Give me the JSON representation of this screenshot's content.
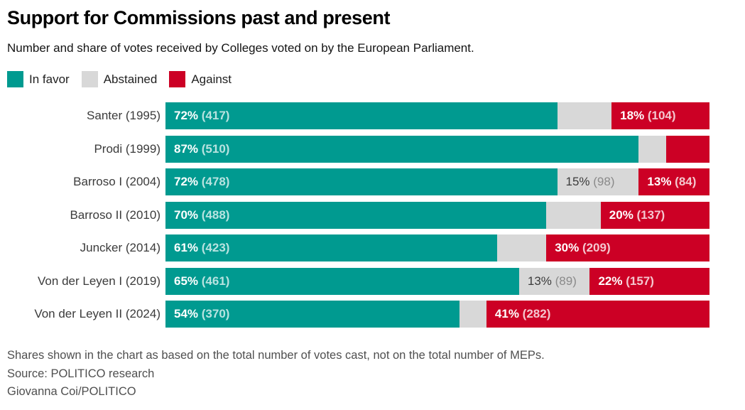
{
  "header": {
    "title": "Support for Commissions past and present",
    "subtitle": "Number and share of votes received by Colleges voted on by the European Parliament."
  },
  "legend": {
    "items": [
      {
        "kind": "favor",
        "label": "In favor",
        "color": "#009A90"
      },
      {
        "kind": "abstain",
        "label": "Abstained",
        "color": "#D8D8D8"
      },
      {
        "kind": "against",
        "label": "Against",
        "color": "#CC0025"
      }
    ]
  },
  "chart_data": {
    "type": "bar",
    "orientation": "horizontal",
    "stacked": true,
    "value_unit": "percent of votes cast",
    "xlim": [
      0,
      100
    ],
    "grid": false,
    "legend_position": "top-left",
    "label_format": "{pct}% ({count})",
    "categories": [
      "Santer (1995)",
      "Prodi (1999)",
      "Barroso I (2004)",
      "Barroso II (2010)",
      "Juncker (2014)",
      "Von der Leyen I (2019)",
      "Von der Leyen II (2024)"
    ],
    "series": [
      {
        "name": "In favor",
        "kind": "favor",
        "color": "#009A90",
        "values": [
          72,
          87,
          72,
          70,
          61,
          65,
          54
        ],
        "counts": [
          417,
          510,
          478,
          488,
          423,
          461,
          370
        ],
        "label_shown": [
          true,
          true,
          true,
          true,
          true,
          true,
          true
        ]
      },
      {
        "name": "Abstained",
        "kind": "abstain",
        "color": "#D8D8D8",
        "values": [
          10,
          5,
          15,
          10,
          9,
          13,
          5
        ],
        "counts": [
          null,
          null,
          98,
          null,
          null,
          89,
          null
        ],
        "label_shown": [
          false,
          false,
          true,
          false,
          false,
          true,
          false
        ]
      },
      {
        "name": "Against",
        "kind": "against",
        "color": "#CC0025",
        "values": [
          18,
          8,
          13,
          20,
          30,
          22,
          41
        ],
        "counts": [
          104,
          null,
          84,
          137,
          209,
          157,
          282
        ],
        "label_shown": [
          true,
          false,
          true,
          true,
          true,
          true,
          true
        ]
      }
    ]
  },
  "footer": {
    "note": "Shares shown in the chart as based on the total number of votes cast, not on the total number of MEPs.",
    "source": "Source: POLITICO research",
    "credit": "Giovanna Coi/POLITICO"
  }
}
